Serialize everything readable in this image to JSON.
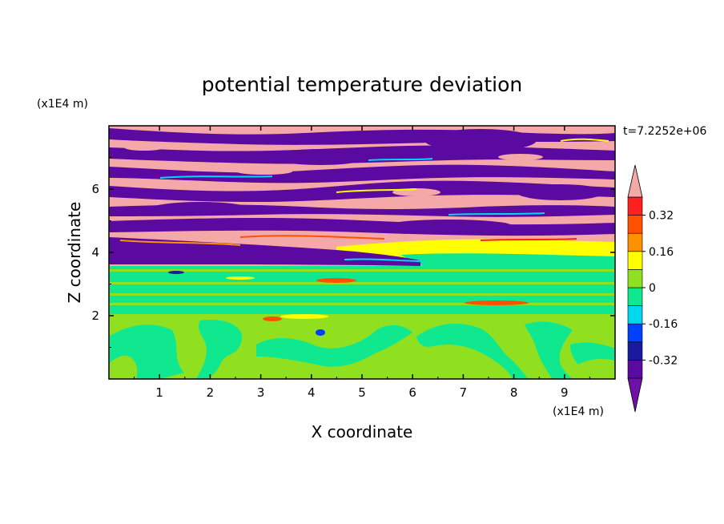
{
  "chart_data": {
    "type": "heatmap",
    "title": "potential temperature deviation",
    "xlabel": "X coordinate",
    "ylabel": "Z coordinate",
    "x_unit": "(x1E4 m)",
    "y_unit": "(x1E4 m)",
    "time_label": "t=7.2252e+06",
    "xlim": [
      0,
      10
    ],
    "ylim": [
      0,
      8
    ],
    "x_ticks": [
      "1",
      "2",
      "3",
      "4",
      "5",
      "6",
      "7",
      "8",
      "9"
    ],
    "y_ticks": [
      "2",
      "4",
      "6"
    ],
    "colorbar": {
      "levels": [
        -0.4,
        -0.32,
        -0.24,
        -0.16,
        -0.08,
        0,
        0.08,
        0.16,
        0.24,
        0.32,
        0.4
      ],
      "labels": [
        "0.32",
        "0.16",
        "0",
        "-0.16",
        "-0.32"
      ],
      "colors": [
        "#5a0aa0",
        "#1a1aa0",
        "#0040ff",
        "#00d8f0",
        "#10e890",
        "#90e020",
        "#ffff00",
        "#ff9000",
        "#ff5000",
        "#ff2020"
      ],
      "under_color": "#7010a8",
      "over_color": "#f5a8a8"
    }
  }
}
